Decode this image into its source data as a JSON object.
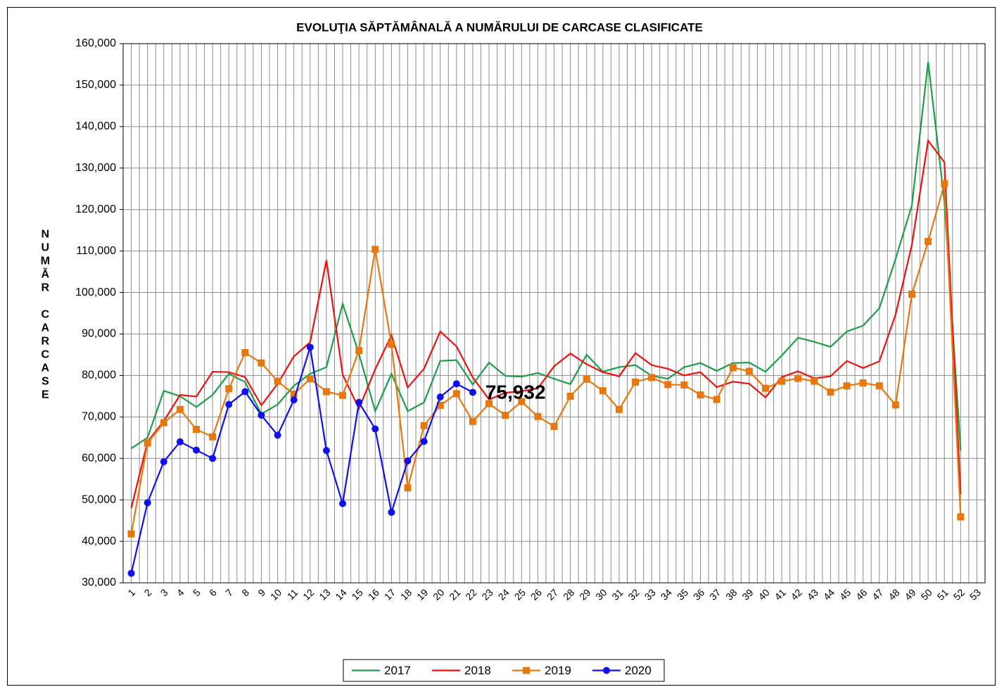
{
  "chart_data": {
    "type": "line",
    "title": "EVOLUŢIA SĂPTĂMÂNALĂ A NUMĂRULUI DE CARCASE  CLASIFICATE",
    "y_label": "NUMĂR CARCASE",
    "categories": [
      "1",
      "2",
      "3",
      "4",
      "5",
      "6",
      "7",
      "8",
      "9",
      "10",
      "11",
      "12",
      "13",
      "14",
      "15",
      "16",
      "17",
      "18",
      "19",
      "20",
      "21",
      "22",
      "23",
      "24",
      "25",
      "26",
      "27",
      "28",
      "29",
      "30",
      "31",
      "32",
      "33",
      "34",
      "35",
      "36",
      "37",
      "38",
      "39",
      "40",
      "41",
      "42",
      "43",
      "44",
      "45",
      "46",
      "47",
      "48",
      "49",
      "50",
      "51",
      "52",
      "53"
    ],
    "ylim": [
      30000,
      160000
    ],
    "yticks": [
      {
        "value": 30000,
        "label": "30,000"
      },
      {
        "value": 40000,
        "label": "40,000"
      },
      {
        "value": 50000,
        "label": "50,000"
      },
      {
        "value": 60000,
        "label": "60,000"
      },
      {
        "value": 70000,
        "label": "70,000"
      },
      {
        "value": 80000,
        "label": "80,000"
      },
      {
        "value": 90000,
        "label": "90,000"
      },
      {
        "value": 100000,
        "label": "100,000"
      },
      {
        "value": 110000,
        "label": "110,000"
      },
      {
        "value": 120000,
        "label": "120,000"
      },
      {
        "value": 130000,
        "label": "130,000"
      },
      {
        "value": 140000,
        "label": "140,000"
      },
      {
        "value": 150000,
        "label": "150,000"
      },
      {
        "value": 160000,
        "label": "160,000"
      }
    ],
    "grid": true,
    "legend": "bottom",
    "series": [
      {
        "name": "2017",
        "color": "#1e9e4a",
        "marker": null,
        "values": [
          62400,
          65000,
          76300,
          75000,
          72400,
          75300,
          80400,
          78400,
          70700,
          73000,
          77500,
          80400,
          82000,
          97300,
          85200,
          71400,
          80400,
          71400,
          73500,
          83500,
          83700,
          77800,
          83100,
          79900,
          79700,
          80600,
          79200,
          77900,
          85000,
          80900,
          82000,
          82500,
          79900,
          79200,
          82000,
          83000,
          81100,
          83000,
          83100,
          80900,
          84800,
          89100,
          88100,
          86900,
          90600,
          92000,
          96200,
          108100,
          121000,
          155600,
          122000,
          61900,
          null
        ]
      },
      {
        "name": "2018",
        "color": "#ee1111",
        "marker": null,
        "values": [
          48000,
          64000,
          69000,
          75300,
          74900,
          80900,
          80800,
          79600,
          72800,
          78000,
          84600,
          88000,
          107800,
          80200,
          72000,
          81500,
          89700,
          77100,
          81600,
          90600,
          87000,
          79500,
          74200,
          75800,
          76200,
          76900,
          82200,
          85300,
          82700,
          80800,
          79800,
          85400,
          82500,
          81600,
          80000,
          80800,
          77200,
          78500,
          78000,
          74700,
          79600,
          81000,
          79300,
          79800,
          83500,
          81800,
          83400,
          94700,
          111500,
          136600,
          131400,
          51400,
          null
        ]
      },
      {
        "name": "2019",
        "color": "#e8770e",
        "marker": "square",
        "values": [
          41800,
          63700,
          68600,
          71800,
          67000,
          65200,
          76800,
          85500,
          83000,
          78600,
          75500,
          79200,
          76100,
          75200,
          86000,
          110400,
          87500,
          52900,
          67900,
          72800,
          75600,
          68900,
          73200,
          70400,
          73700,
          70100,
          67700,
          75000,
          79100,
          76300,
          71800,
          78400,
          79500,
          77800,
          77700,
          75300,
          74200,
          81900,
          81000,
          76900,
          78600,
          79300,
          78600,
          76000,
          77500,
          78200,
          77500,
          72900,
          99600,
          112300,
          126200,
          45900,
          null
        ]
      },
      {
        "name": "2020",
        "color": "#1010ee",
        "marker": "circle",
        "values": [
          32300,
          49300,
          59200,
          64000,
          62000,
          60000,
          73000,
          76100,
          70400,
          65600,
          74100,
          86800,
          61900,
          49100,
          73500,
          67100,
          47000,
          59400,
          64100,
          74800,
          78000,
          75932,
          null,
          null,
          null,
          null,
          null,
          null,
          null,
          null,
          null,
          null,
          null,
          null,
          null,
          null,
          null,
          null,
          null,
          null,
          null,
          null,
          null,
          null,
          null,
          null,
          null,
          null,
          null,
          null,
          null,
          null,
          null
        ],
        "value_labels": [
          null,
          null,
          null,
          null,
          null,
          null,
          null,
          null,
          null,
          null,
          null,
          null,
          null,
          null,
          null,
          null,
          null,
          null,
          null,
          null,
          null,
          "75,932",
          null,
          null,
          null,
          null,
          null,
          null,
          null,
          null,
          null,
          null,
          null,
          null,
          null,
          null,
          null,
          null,
          null,
          null,
          null,
          null,
          null,
          null,
          null,
          null,
          null,
          null,
          null,
          null,
          null,
          null,
          null
        ]
      }
    ]
  }
}
